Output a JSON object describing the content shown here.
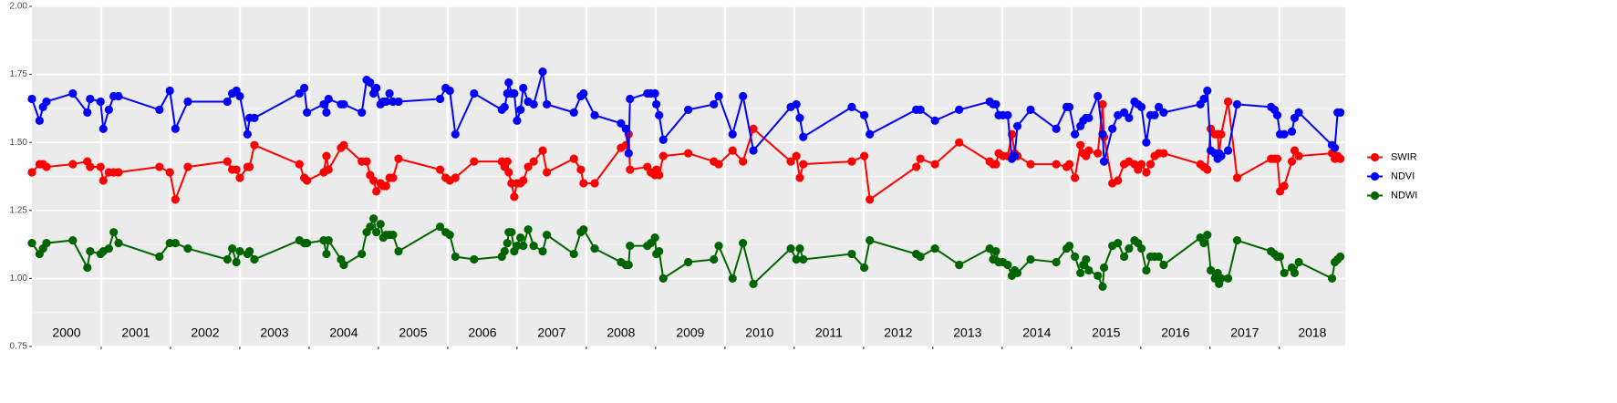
{
  "chart_data": {
    "type": "line",
    "x": [
      2000.0,
      2000.11,
      2000.16,
      2000.21,
      2000.59,
      2000.8,
      2000.84,
      2000.99,
      2001.03,
      2001.11,
      2001.18,
      2001.25,
      2001.84,
      2001.99,
      2002.07,
      2002.25,
      2002.82,
      2002.89,
      2002.95,
      2003.0,
      2003.11,
      2003.14,
      2003.21,
      2003.86,
      2003.93,
      2003.97,
      2004.21,
      2004.25,
      2004.28,
      2004.46,
      2004.5,
      2004.76,
      2004.83,
      2004.88,
      2004.93,
      2004.97,
      2005.03,
      2005.07,
      2005.11,
      2005.16,
      2005.21,
      2005.29,
      2005.89,
      2005.97,
      2006.03,
      2006.11,
      2006.38,
      2006.78,
      2006.82,
      2006.86,
      2006.88,
      2006.92,
      2006.96,
      2007.0,
      2007.05,
      2007.09,
      2007.16,
      2007.24,
      2007.37,
      2007.43,
      2007.82,
      2007.92,
      2007.96,
      2008.12,
      2008.5,
      2008.57,
      2008.61,
      2008.63,
      2008.88,
      2008.93,
      2008.99,
      2009.01,
      2009.05,
      2009.11,
      2009.47,
      2009.84,
      2009.91,
      2010.11,
      2010.26,
      2010.41,
      2010.95,
      2011.03,
      2011.08,
      2011.13,
      2011.83,
      2012.01,
      2012.09,
      2012.76,
      2012.82,
      2013.03,
      2013.38,
      2013.82,
      2013.87,
      2013.91,
      2013.95,
      2014.01,
      2014.08,
      2014.14,
      2014.18,
      2014.22,
      2014.41,
      2014.78,
      2014.93,
      2014.97,
      2015.05,
      2015.13,
      2015.17,
      2015.21,
      2015.25,
      2015.38,
      2015.45,
      2015.47,
      2015.59,
      2015.67,
      2015.76,
      2015.83,
      2015.91,
      2015.96,
      2016.01,
      2016.08,
      2016.14,
      2016.2,
      2016.26,
      2016.33,
      2016.86,
      2016.91,
      2016.96,
      2017.01,
      2017.07,
      2017.11,
      2017.13,
      2017.16,
      2017.26,
      2017.39,
      2017.88,
      2017.93,
      2017.97,
      2018.01,
      2018.07,
      2018.18,
      2018.22,
      2018.28,
      2018.76,
      2018.8,
      2018.84,
      2018.88
    ],
    "series": [
      {
        "name": "SWIR",
        "color": "#ff0000",
        "values": [
          1.39,
          1.42,
          1.42,
          1.41,
          1.42,
          1.43,
          1.41,
          1.41,
          1.36,
          1.39,
          1.39,
          1.39,
          1.41,
          1.39,
          1.29,
          1.41,
          1.43,
          1.4,
          1.4,
          1.37,
          1.41,
          1.41,
          1.49,
          1.42,
          1.37,
          1.36,
          1.39,
          1.45,
          1.4,
          1.48,
          1.49,
          1.43,
          1.43,
          1.38,
          1.36,
          1.32,
          1.35,
          1.34,
          1.34,
          1.37,
          1.37,
          1.44,
          1.4,
          1.37,
          1.36,
          1.37,
          1.43,
          1.43,
          1.41,
          1.43,
          1.39,
          1.35,
          1.3,
          1.35,
          1.35,
          1.36,
          1.41,
          1.43,
          1.47,
          1.39,
          1.44,
          1.4,
          1.35,
          1.35,
          1.48,
          1.49,
          1.53,
          1.4,
          1.41,
          1.39,
          1.38,
          1.4,
          1.38,
          1.45,
          1.46,
          1.43,
          1.42,
          1.47,
          1.43,
          1.55,
          1.43,
          1.45,
          1.37,
          1.42,
          1.43,
          1.45,
          1.29,
          1.41,
          1.44,
          1.42,
          1.5,
          1.43,
          1.42,
          1.42,
          1.46,
          1.45,
          1.45,
          1.53,
          1.46,
          1.45,
          1.42,
          1.42,
          1.41,
          1.42,
          1.37,
          1.49,
          1.46,
          1.45,
          1.47,
          1.46,
          1.64,
          1.52,
          1.35,
          1.36,
          1.42,
          1.43,
          1.42,
          1.4,
          1.42,
          1.39,
          1.42,
          1.45,
          1.46,
          1.46,
          1.42,
          1.41,
          1.4,
          1.55,
          1.53,
          1.53,
          1.45,
          1.53,
          1.65,
          1.37,
          1.44,
          1.44,
          1.44,
          1.32,
          1.34,
          1.43,
          1.47,
          1.45,
          1.46,
          1.44,
          1.45,
          1.44
        ]
      },
      {
        "name": "NDVI",
        "color": "#0000ff",
        "values": [
          1.66,
          1.58,
          1.63,
          1.65,
          1.68,
          1.61,
          1.66,
          1.65,
          1.55,
          1.62,
          1.67,
          1.67,
          1.62,
          1.69,
          1.55,
          1.65,
          1.65,
          1.68,
          1.69,
          1.67,
          1.53,
          1.59,
          1.59,
          1.68,
          1.7,
          1.61,
          1.64,
          1.61,
          1.66,
          1.64,
          1.64,
          1.61,
          1.73,
          1.72,
          1.68,
          1.7,
          1.64,
          1.65,
          1.65,
          1.68,
          1.65,
          1.65,
          1.66,
          1.7,
          1.69,
          1.53,
          1.68,
          1.62,
          1.63,
          1.68,
          1.72,
          1.68,
          1.68,
          1.58,
          1.62,
          1.7,
          1.65,
          1.64,
          1.76,
          1.64,
          1.61,
          1.67,
          1.68,
          1.6,
          1.57,
          1.55,
          1.46,
          1.66,
          1.68,
          1.68,
          1.68,
          1.64,
          1.6,
          1.51,
          1.62,
          1.64,
          1.67,
          1.53,
          1.67,
          1.47,
          1.63,
          1.64,
          1.59,
          1.52,
          1.63,
          1.6,
          1.53,
          1.62,
          1.62,
          1.58,
          1.62,
          1.65,
          1.64,
          1.64,
          1.6,
          1.6,
          1.6,
          1.44,
          1.45,
          1.56,
          1.62,
          1.55,
          1.63,
          1.63,
          1.53,
          1.56,
          1.58,
          1.59,
          1.59,
          1.67,
          1.53,
          1.43,
          1.55,
          1.6,
          1.61,
          1.59,
          1.65,
          1.64,
          1.63,
          1.5,
          1.6,
          1.6,
          1.63,
          1.61,
          1.64,
          1.66,
          1.69,
          1.47,
          1.46,
          1.44,
          1.46,
          1.45,
          1.47,
          1.64,
          1.63,
          1.62,
          1.6,
          1.53,
          1.53,
          1.54,
          1.59,
          1.61,
          1.49,
          1.48,
          1.61,
          1.61
        ]
      },
      {
        "name": "NDWI",
        "color": "#006400",
        "values": [
          1.13,
          1.09,
          1.11,
          1.13,
          1.14,
          1.04,
          1.1,
          1.09,
          1.1,
          1.11,
          1.17,
          1.13,
          1.08,
          1.13,
          1.13,
          1.11,
          1.07,
          1.11,
          1.06,
          1.1,
          1.09,
          1.1,
          1.07,
          1.14,
          1.13,
          1.13,
          1.14,
          1.09,
          1.14,
          1.07,
          1.05,
          1.09,
          1.17,
          1.19,
          1.22,
          1.17,
          1.2,
          1.15,
          1.16,
          1.16,
          1.16,
          1.1,
          1.19,
          1.17,
          1.16,
          1.08,
          1.07,
          1.08,
          1.1,
          1.13,
          1.17,
          1.17,
          1.1,
          1.12,
          1.15,
          1.12,
          1.18,
          1.12,
          1.1,
          1.16,
          1.09,
          1.17,
          1.18,
          1.11,
          1.06,
          1.05,
          1.05,
          1.12,
          1.12,
          1.13,
          1.15,
          1.09,
          1.1,
          1.0,
          1.06,
          1.07,
          1.12,
          1.0,
          1.13,
          0.98,
          1.11,
          1.07,
          1.11,
          1.07,
          1.09,
          1.04,
          1.14,
          1.09,
          1.08,
          1.11,
          1.05,
          1.11,
          1.07,
          1.1,
          1.06,
          1.06,
          1.05,
          1.01,
          1.03,
          1.02,
          1.07,
          1.06,
          1.11,
          1.12,
          1.08,
          1.02,
          1.05,
          1.07,
          1.03,
          1.01,
          0.97,
          1.04,
          1.12,
          1.13,
          1.08,
          1.11,
          1.14,
          1.13,
          1.11,
          1.03,
          1.08,
          1.08,
          1.08,
          1.05,
          1.15,
          1.13,
          1.16,
          1.03,
          1.0,
          1.02,
          0.98,
          1.0,
          1.0,
          1.14,
          1.1,
          1.09,
          1.08,
          1.08,
          1.02,
          1.04,
          1.02,
          1.06,
          1.0,
          1.06,
          1.07,
          1.08
        ]
      }
    ],
    "xlim": [
      2000,
      2018.95
    ],
    "xticks": [
      2001,
      2002,
      2003,
      2004,
      2005,
      2006,
      2007,
      2008,
      2009,
      2010,
      2011,
      2012,
      2013,
      2014,
      2015,
      2016,
      2017,
      2018
    ],
    "ylim": [
      0.75,
      2.0
    ],
    "yticks": [
      {
        "value": 0.75,
        "label": "0.75"
      },
      {
        "value": 1.0,
        "label": "1.00"
      },
      {
        "value": 1.25,
        "label": "1.25"
      },
      {
        "value": 1.5,
        "label": "1.50"
      },
      {
        "value": 1.75,
        "label": "1.75"
      },
      {
        "value": 2.0,
        "label": "2.00"
      }
    ],
    "year_labels": [
      "2000",
      "2001",
      "2002",
      "2003",
      "2004",
      "2005",
      "2006",
      "2007",
      "2008",
      "2009",
      "2010",
      "2011",
      "2012",
      "2013",
      "2014",
      "2015",
      "2016",
      "2017",
      "2018"
    ],
    "grid": true,
    "legend": "right"
  }
}
